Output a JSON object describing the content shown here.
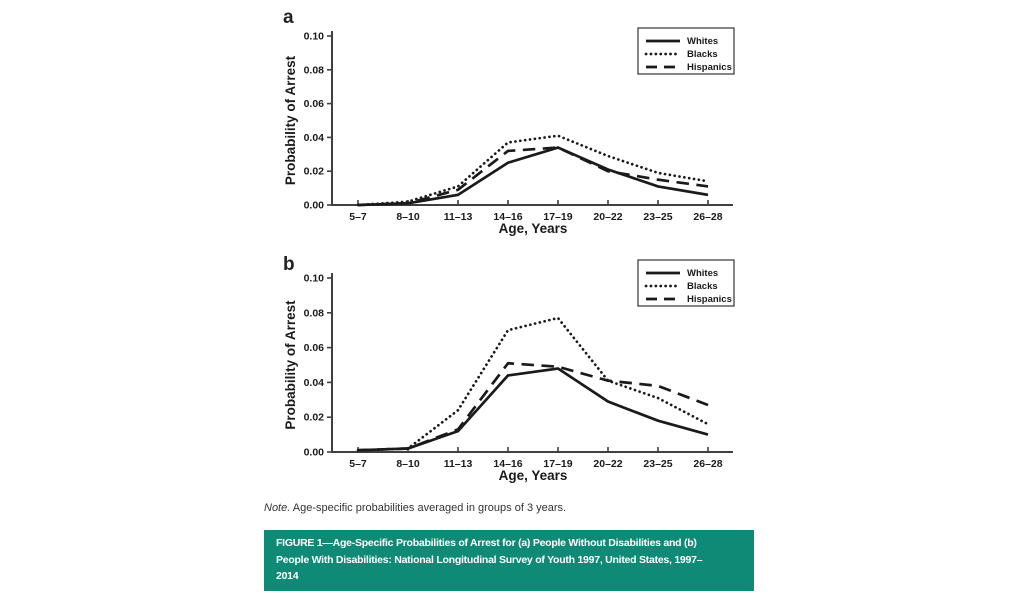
{
  "note": {
    "label": "Note.",
    "text": "Age-specific probabilities averaged in groups of 3 years."
  },
  "caption": {
    "background": "#0f8a76",
    "text_color": "#ffffff",
    "full_text": "FIGURE 1—Age-Specific Probabilities of Arrest for (a) People Without Disabilities and (b) People With Disabilities: National Longitudinal Survey of Youth 1997, United States, 1997–2014",
    "lines": [
      "FIGURE 1—Age-Specific Probabilities of Arrest for (a) People Without Disabilities and (b)",
      "People With Disabilities: National Longitudinal Survey of Youth 1997, United States, 1997–",
      "2014"
    ]
  },
  "style": {
    "line_color": "#1a1a1a",
    "axis_color": "#404040",
    "legend_border_color": "#333333"
  },
  "chart_data": [
    {
      "panel": "a",
      "type": "line",
      "title": "",
      "xlabel": "Age, Years",
      "ylabel": "Probability of Arrest",
      "ylim": [
        0,
        0.1
      ],
      "yticks": [
        0.0,
        0.02,
        0.04,
        0.06,
        0.08,
        0.1
      ],
      "grid": false,
      "legend_position": "top-right",
      "categories": [
        "5–7",
        "8–10",
        "11–13",
        "14–16",
        "17–19",
        "20–22",
        "23–25",
        "26–28"
      ],
      "series": [
        {
          "name": "Whites",
          "line_style": "solid",
          "values": [
            0.0,
            0.001,
            0.006,
            0.025,
            0.034,
            0.021,
            0.011,
            0.006
          ]
        },
        {
          "name": "Blacks",
          "line_style": "dotted",
          "values": [
            0.0,
            0.002,
            0.011,
            0.037,
            0.041,
            0.029,
            0.019,
            0.014
          ]
        },
        {
          "name": "Hispanics",
          "line_style": "dashed",
          "values": [
            0.0,
            0.001,
            0.009,
            0.032,
            0.034,
            0.02,
            0.015,
            0.011
          ]
        }
      ]
    },
    {
      "panel": "b",
      "type": "line",
      "title": "",
      "xlabel": "Age, Years",
      "ylabel": "Probability of Arrest",
      "ylim": [
        0,
        0.1
      ],
      "yticks": [
        0.0,
        0.02,
        0.04,
        0.06,
        0.08,
        0.1
      ],
      "grid": false,
      "legend_position": "top-right",
      "categories": [
        "5–7",
        "8–10",
        "11–13",
        "14–16",
        "17–19",
        "20–22",
        "23–25",
        "26–28"
      ],
      "series": [
        {
          "name": "Whites",
          "line_style": "solid",
          "values": [
            0.001,
            0.002,
            0.012,
            0.044,
            0.048,
            0.029,
            0.018,
            0.01
          ]
        },
        {
          "name": "Blacks",
          "line_style": "dotted",
          "values": [
            0.001,
            0.002,
            0.024,
            0.07,
            0.077,
            0.041,
            0.031,
            0.016
          ]
        },
        {
          "name": "Hispanics",
          "line_style": "dashed",
          "values": [
            0.001,
            0.002,
            0.013,
            0.051,
            0.049,
            0.041,
            0.038,
            0.027
          ]
        }
      ]
    }
  ]
}
